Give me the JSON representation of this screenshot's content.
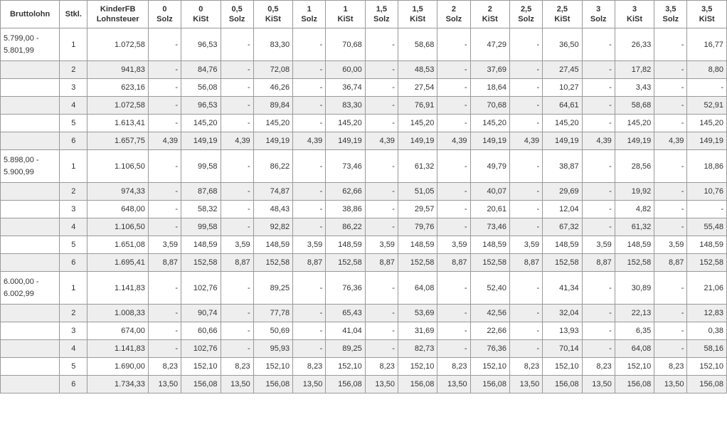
{
  "header": {
    "brutto": "Bruttolohn",
    "stkl": "Stkl.",
    "kinderFB_line1": "KinderFB",
    "kinderFB_line2": "Lohnsteuer",
    "groups": [
      "0",
      "0,5",
      "1",
      "1,5",
      "2",
      "2,5",
      "3",
      "3,5"
    ],
    "solz": "Solz",
    "kist": "KiSt"
  },
  "ranges": [
    {
      "brutto": "5.799,00 - 5.801,99",
      "rows": [
        {
          "stkl": "1",
          "lohn": "1.072,58",
          "pairs": [
            [
              "-",
              "96,53"
            ],
            [
              "-",
              "83,30"
            ],
            [
              "-",
              "70,68"
            ],
            [
              "-",
              "58,68"
            ],
            [
              "-",
              "47,29"
            ],
            [
              "-",
              "36,50"
            ],
            [
              "-",
              "26,33"
            ],
            [
              "-",
              "16,77"
            ]
          ]
        },
        {
          "stkl": "2",
          "lohn": "941,83",
          "pairs": [
            [
              "-",
              "84,76"
            ],
            [
              "-",
              "72,08"
            ],
            [
              "-",
              "60,00"
            ],
            [
              "-",
              "48,53"
            ],
            [
              "-",
              "37,69"
            ],
            [
              "-",
              "27,45"
            ],
            [
              "-",
              "17,82"
            ],
            [
              "-",
              "8,80"
            ]
          ]
        },
        {
          "stkl": "3",
          "lohn": "623,16",
          "pairs": [
            [
              "-",
              "56,08"
            ],
            [
              "-",
              "46,26"
            ],
            [
              "-",
              "36,74"
            ],
            [
              "-",
              "27,54"
            ],
            [
              "-",
              "18,64"
            ],
            [
              "-",
              "10,27"
            ],
            [
              "-",
              "3,43"
            ],
            [
              "-",
              "-"
            ]
          ]
        },
        {
          "stkl": "4",
          "lohn": "1.072,58",
          "pairs": [
            [
              "-",
              "96,53"
            ],
            [
              "-",
              "89,84"
            ],
            [
              "-",
              "83,30"
            ],
            [
              "-",
              "76,91"
            ],
            [
              "-",
              "70,68"
            ],
            [
              "-",
              "64,61"
            ],
            [
              "-",
              "58,68"
            ],
            [
              "-",
              "52,91"
            ]
          ]
        },
        {
          "stkl": "5",
          "lohn": "1.613,41",
          "pairs": [
            [
              "-",
              "145,20"
            ],
            [
              "-",
              "145,20"
            ],
            [
              "-",
              "145,20"
            ],
            [
              "-",
              "145,20"
            ],
            [
              "-",
              "145,20"
            ],
            [
              "-",
              "145,20"
            ],
            [
              "-",
              "145,20"
            ],
            [
              "-",
              "145,20"
            ]
          ]
        },
        {
          "stkl": "6",
          "lohn": "1.657,75",
          "pairs": [
            [
              "4,39",
              "149,19"
            ],
            [
              "4,39",
              "149,19"
            ],
            [
              "4,39",
              "149,19"
            ],
            [
              "4,39",
              "149,19"
            ],
            [
              "4,39",
              "149,19"
            ],
            [
              "4,39",
              "149,19"
            ],
            [
              "4,39",
              "149,19"
            ],
            [
              "4,39",
              "149,19"
            ]
          ]
        }
      ]
    },
    {
      "brutto": "5.898,00 - 5.900,99",
      "rows": [
        {
          "stkl": "1",
          "lohn": "1.106,50",
          "pairs": [
            [
              "-",
              "99,58"
            ],
            [
              "-",
              "86,22"
            ],
            [
              "-",
              "73,46"
            ],
            [
              "-",
              "61,32"
            ],
            [
              "-",
              "49,79"
            ],
            [
              "-",
              "38,87"
            ],
            [
              "-",
              "28,56"
            ],
            [
              "-",
              "18,86"
            ]
          ]
        },
        {
          "stkl": "2",
          "lohn": "974,33",
          "pairs": [
            [
              "-",
              "87,68"
            ],
            [
              "-",
              "74,87"
            ],
            [
              "-",
              "62,66"
            ],
            [
              "-",
              "51,05"
            ],
            [
              "-",
              "40,07"
            ],
            [
              "-",
              "29,69"
            ],
            [
              "-",
              "19,92"
            ],
            [
              "-",
              "10,76"
            ]
          ]
        },
        {
          "stkl": "3",
          "lohn": "648,00",
          "pairs": [
            [
              "-",
              "58,32"
            ],
            [
              "-",
              "48,43"
            ],
            [
              "-",
              "38,86"
            ],
            [
              "-",
              "29,57"
            ],
            [
              "-",
              "20,61"
            ],
            [
              "-",
              "12,04"
            ],
            [
              "-",
              "4,82"
            ],
            [
              "-",
              "-"
            ]
          ]
        },
        {
          "stkl": "4",
          "lohn": "1.106,50",
          "pairs": [
            [
              "-",
              "99,58"
            ],
            [
              "-",
              "92,82"
            ],
            [
              "-",
              "86,22"
            ],
            [
              "-",
              "79,76"
            ],
            [
              "-",
              "73,46"
            ],
            [
              "-",
              "67,32"
            ],
            [
              "-",
              "61,32"
            ],
            [
              "-",
              "55,48"
            ]
          ]
        },
        {
          "stkl": "5",
          "lohn": "1.651,08",
          "pairs": [
            [
              "3,59",
              "148,59"
            ],
            [
              "3,59",
              "148,59"
            ],
            [
              "3,59",
              "148,59"
            ],
            [
              "3,59",
              "148,59"
            ],
            [
              "3,59",
              "148,59"
            ],
            [
              "3,59",
              "148,59"
            ],
            [
              "3,59",
              "148,59"
            ],
            [
              "3,59",
              "148,59"
            ]
          ]
        },
        {
          "stkl": "6",
          "lohn": "1.695,41",
          "pairs": [
            [
              "8,87",
              "152,58"
            ],
            [
              "8,87",
              "152,58"
            ],
            [
              "8,87",
              "152,58"
            ],
            [
              "8,87",
              "152,58"
            ],
            [
              "8,87",
              "152,58"
            ],
            [
              "8,87",
              "152,58"
            ],
            [
              "8,87",
              "152,58"
            ],
            [
              "8,87",
              "152,58"
            ]
          ]
        }
      ]
    },
    {
      "brutto": "6.000,00 - 6.002,99",
      "rows": [
        {
          "stkl": "1",
          "lohn": "1.141,83",
          "pairs": [
            [
              "-",
              "102,76"
            ],
            [
              "-",
              "89,25"
            ],
            [
              "-",
              "76,36"
            ],
            [
              "-",
              "64,08"
            ],
            [
              "-",
              "52,40"
            ],
            [
              "-",
              "41,34"
            ],
            [
              "-",
              "30,89"
            ],
            [
              "-",
              "21,06"
            ]
          ]
        },
        {
          "stkl": "2",
          "lohn": "1.008,33",
          "pairs": [
            [
              "-",
              "90,74"
            ],
            [
              "-",
              "77,78"
            ],
            [
              "-",
              "65,43"
            ],
            [
              "-",
              "53,69"
            ],
            [
              "-",
              "42,56"
            ],
            [
              "-",
              "32,04"
            ],
            [
              "-",
              "22,13"
            ],
            [
              "-",
              "12,83"
            ]
          ]
        },
        {
          "stkl": "3",
          "lohn": "674,00",
          "pairs": [
            [
              "-",
              "60,66"
            ],
            [
              "-",
              "50,69"
            ],
            [
              "-",
              "41,04"
            ],
            [
              "-",
              "31,69"
            ],
            [
              "-",
              "22,66"
            ],
            [
              "-",
              "13,93"
            ],
            [
              "-",
              "6,35"
            ],
            [
              "-",
              "0,38"
            ]
          ]
        },
        {
          "stkl": "4",
          "lohn": "1.141,83",
          "pairs": [
            [
              "-",
              "102,76"
            ],
            [
              "-",
              "95,93"
            ],
            [
              "-",
              "89,25"
            ],
            [
              "-",
              "82,73"
            ],
            [
              "-",
              "76,36"
            ],
            [
              "-",
              "70,14"
            ],
            [
              "-",
              "64,08"
            ],
            [
              "-",
              "58,16"
            ]
          ]
        },
        {
          "stkl": "5",
          "lohn": "1.690,00",
          "pairs": [
            [
              "8,23",
              "152,10"
            ],
            [
              "8,23",
              "152,10"
            ],
            [
              "8,23",
              "152,10"
            ],
            [
              "8,23",
              "152,10"
            ],
            [
              "8,23",
              "152,10"
            ],
            [
              "8,23",
              "152,10"
            ],
            [
              "8,23",
              "152,10"
            ],
            [
              "8,23",
              "152,10"
            ]
          ]
        },
        {
          "stkl": "6",
          "lohn": "1.734,33",
          "pairs": [
            [
              "13,50",
              "156,08"
            ],
            [
              "13,50",
              "156,08"
            ],
            [
              "13,50",
              "156,08"
            ],
            [
              "13,50",
              "156,08"
            ],
            [
              "13,50",
              "156,08"
            ],
            [
              "13,50",
              "156,08"
            ],
            [
              "13,50",
              "156,08"
            ],
            [
              "13,50",
              "156,08"
            ]
          ]
        }
      ]
    }
  ]
}
